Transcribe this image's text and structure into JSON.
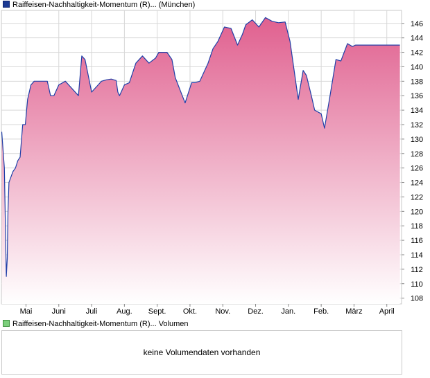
{
  "legend": {
    "price_label": "Raiffeisen-Nachhaltigkeit-Momentum (R)... (München)",
    "volume_label": "Raiffeisen-Nachhaltigkeit-Momentum (R)... Volumen"
  },
  "volume_panel": {
    "message": "keine Volumendaten vorhanden"
  },
  "colors": {
    "line": "#1f3fa8",
    "fill_top": "#e0608f",
    "fill_bottom": "#ffffff",
    "grid": "#d7d7d7",
    "frame": "#c9c9c9"
  },
  "chart_data": {
    "type": "area",
    "title": "",
    "xlabel": "",
    "ylabel": "",
    "y_axis_position": "right",
    "ylim": [
      107.2,
      147.8
    ],
    "y_ticks": [
      108,
      110,
      112,
      114,
      116,
      118,
      120,
      122,
      124,
      126,
      128,
      130,
      132,
      134,
      136,
      138,
      140,
      142,
      144,
      146
    ],
    "x_month_labels": [
      "Mai",
      "Juni",
      "Juli",
      "Aug.",
      "Sept.",
      "Okt.",
      "Nov.",
      "Dez.",
      "Jan.",
      "Feb.",
      "März",
      "April"
    ],
    "x_range_months": [
      -0.75,
      11.45
    ],
    "grid": true,
    "series": [
      {
        "x": [
          -0.74,
          -0.66,
          -0.6,
          -0.57,
          -0.55,
          -0.52,
          -0.48,
          -0.4,
          -0.32,
          -0.25,
          -0.18,
          -0.1,
          -0.02,
          0.05,
          0.15,
          0.25,
          0.35,
          0.45,
          0.55,
          0.65,
          0.75,
          0.85,
          1.0,
          1.2,
          1.4,
          1.6,
          1.7,
          1.8,
          2.0,
          2.2,
          2.3,
          2.45,
          2.6,
          2.75,
          2.8,
          2.85,
          3.0,
          3.15,
          3.35,
          3.55,
          3.75,
          3.95,
          4.05,
          4.3,
          4.45,
          4.55,
          4.85,
          5.05,
          5.15,
          5.3,
          5.45,
          5.55,
          5.7,
          5.85,
          6.05,
          6.25,
          6.45,
          6.6,
          6.7,
          6.9,
          7.1,
          7.3,
          7.5,
          7.7,
          7.9,
          8.05,
          8.3,
          8.45,
          8.55,
          8.7,
          8.8,
          9.0,
          9.1,
          9.25,
          9.45,
          9.6,
          9.8,
          9.95,
          10.05,
          10.15,
          10.25,
          10.35,
          10.5,
          10.55,
          10.6,
          10.7,
          10.8,
          10.95,
          11.05,
          11.15,
          11.25,
          11.4
        ],
        "y": [
          131.0,
          126.0,
          111.0,
          113.5,
          120.0,
          124.0,
          124.5,
          125.5,
          126.0,
          127.0,
          127.5,
          132.0,
          132.0,
          135.5,
          137.5,
          138.0,
          138.0,
          138.0,
          138.0,
          138.0,
          136.0,
          136.0,
          137.5,
          138.0,
          137.0,
          136.0,
          141.5,
          141.0,
          136.5,
          137.5,
          138.0,
          138.2,
          138.3,
          138.1,
          136.5,
          136.0,
          137.5,
          137.8,
          140.5,
          141.5,
          140.5,
          141.2,
          142.0,
          142.0,
          141.0,
          138.5,
          135.0,
          137.8,
          137.8,
          138.0,
          139.5,
          140.5,
          142.5,
          143.5,
          145.5,
          145.3,
          143.0,
          144.5,
          145.8,
          146.5,
          145.5,
          146.8,
          146.3,
          146.1,
          146.2,
          143.5,
          135.5,
          139.5,
          138.8,
          136.0,
          134.0,
          133.5,
          131.5,
          135.5,
          141.0,
          140.8,
          143.2,
          142.8,
          143.0,
          143.0,
          143.0,
          143.0,
          143.0,
          143.0,
          143.0,
          143.0,
          143.0,
          143.0,
          143.0,
          143.0,
          143.0,
          143.0
        ]
      }
    ]
  }
}
